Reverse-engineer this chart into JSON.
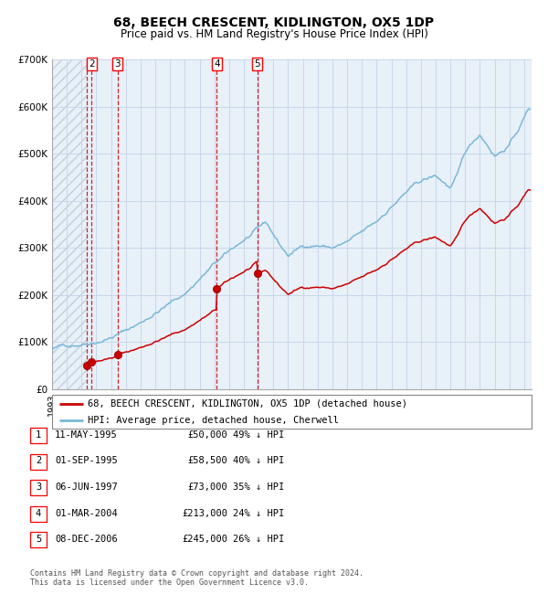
{
  "title": "68, BEECH CRESCENT, KIDLINGTON, OX5 1DP",
  "subtitle": "Price paid vs. HM Land Registry's House Price Index (HPI)",
  "ylim": [
    0,
    700000
  ],
  "yticks": [
    0,
    100000,
    200000,
    300000,
    400000,
    500000,
    600000,
    700000
  ],
  "ytick_labels": [
    "£0",
    "£100K",
    "£200K",
    "£300K",
    "£400K",
    "£500K",
    "£600K",
    "£700K"
  ],
  "xlim_start": 1993.0,
  "xlim_end": 2025.5,
  "sale_dates_x": [
    1995.36,
    1995.67,
    1997.43,
    2004.17,
    2006.92
  ],
  "sale_prices_y": [
    50000,
    58500,
    73000,
    213000,
    245000
  ],
  "sale_labels": [
    "1",
    "2",
    "3",
    "4",
    "5"
  ],
  "hpi_line_color": "#7ab8d9",
  "sale_line_color": "#cc0000",
  "sale_dot_color": "#cc0000",
  "vline_color": "#cc0000",
  "grid_color": "#c8d8ea",
  "bg_color": "#e8f0f8",
  "hatch_color": "#b8c8d8",
  "legend_entries": [
    "68, BEECH CRESCENT, KIDLINGTON, OX5 1DP (detached house)",
    "HPI: Average price, detached house, Cherwell"
  ],
  "table_entries": [
    {
      "num": "1",
      "date": "11-MAY-1995",
      "price": "£50,000",
      "hpi": "49% ↓ HPI"
    },
    {
      "num": "2",
      "date": "01-SEP-1995",
      "price": "£58,500",
      "hpi": "40% ↓ HPI"
    },
    {
      "num": "3",
      "date": "06-JUN-1997",
      "price": "£73,000",
      "hpi": "35% ↓ HPI"
    },
    {
      "num": "4",
      "date": "01-MAR-2004",
      "price": "£213,000",
      "hpi": "24% ↓ HPI"
    },
    {
      "num": "5",
      "date": "08-DEC-2006",
      "price": "£245,000",
      "hpi": "26% ↓ HPI"
    }
  ],
  "footnote": "Contains HM Land Registry data © Crown copyright and database right 2024.\nThis data is licensed under the Open Government Licence v3.0.",
  "title_fontsize": 10,
  "subtitle_fontsize": 8.5,
  "tick_fontsize": 7.5,
  "legend_fontsize": 7.5,
  "table_fontsize": 7.5,
  "footnote_fontsize": 6
}
